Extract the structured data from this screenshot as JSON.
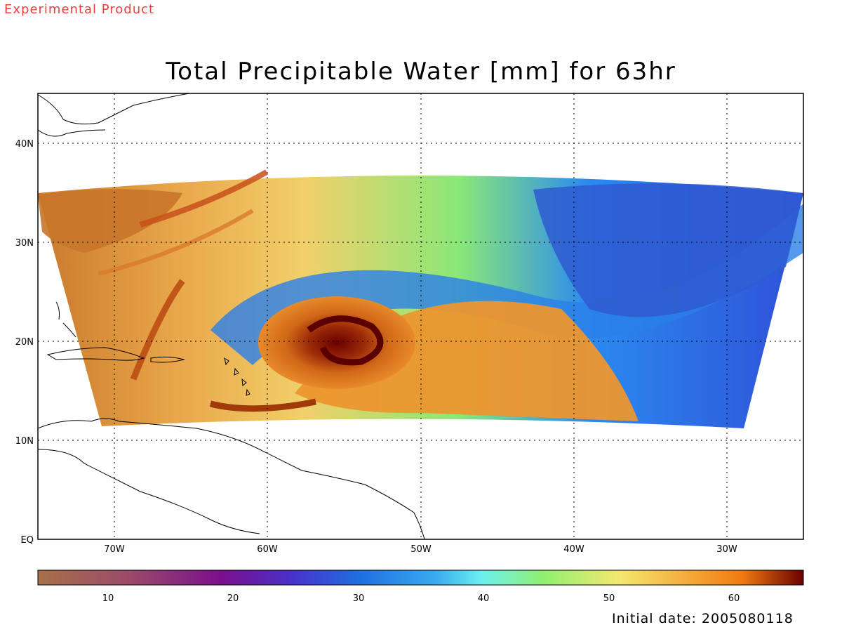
{
  "header": {
    "tag": "Experimental Product"
  },
  "map": {
    "title": "Total Precipitable Water [mm] for 63hr",
    "longitude_labels": [
      "70W",
      "60W",
      "50W",
      "40W",
      "30W"
    ],
    "latitude_labels": [
      "40N",
      "30N",
      "20N",
      "10N",
      "EQ"
    ],
    "features": [
      "hurricane-vortex-icon",
      "coastline-americas",
      "caribbean-islands"
    ]
  },
  "colorbar": {
    "ticks": [
      "10",
      "20",
      "30",
      "40",
      "50",
      "60"
    ],
    "colors": {
      "low": "#a8704a",
      "purple": "#7a0f8e",
      "blue": "#1f6fe0",
      "cyan": "#6cf0f0",
      "green": "#90f070",
      "yellow": "#f5e870",
      "orange": "#f07a10",
      "high": "#6a0000"
    }
  },
  "footer": {
    "initial_date": "Initial date: 2005080118"
  }
}
